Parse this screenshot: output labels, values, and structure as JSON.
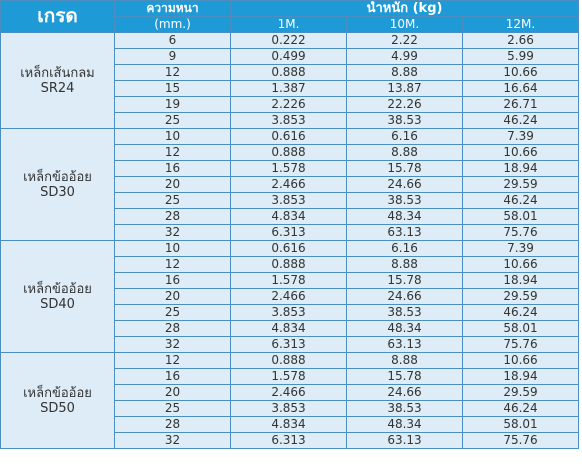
{
  "headers": {
    "grade": "เกรด",
    "thickness": "ความหนา",
    "weight": "น้ำหนัก (kg)",
    "unit": "(mm.)",
    "lengths": [
      "1M.",
      "10M.",
      "12M."
    ]
  },
  "groups": [
    {
      "name_line1": "เหล็กเส้นกลม",
      "name_line2": "SR24",
      "rows": [
        [
          "6",
          "0.222",
          "2.22",
          "2.66"
        ],
        [
          "9",
          "0.499",
          "4.99",
          "5.99"
        ],
        [
          "12",
          "0.888",
          "8.88",
          "10.66"
        ],
        [
          "15",
          "1.387",
          "13.87",
          "16.64"
        ],
        [
          "19",
          "2.226",
          "22.26",
          "26.71"
        ],
        [
          "25",
          "3.853",
          "38.53",
          "46.24"
        ]
      ]
    },
    {
      "name_line1": "เหล็กข้ออ้อย",
      "name_line2": "SD30",
      "rows": [
        [
          "10",
          "0.616",
          "6.16",
          "7.39"
        ],
        [
          "12",
          "0.888",
          "8.88",
          "10.66"
        ],
        [
          "16",
          "1.578",
          "15.78",
          "18.94"
        ],
        [
          "20",
          "2.466",
          "24.66",
          "29.59"
        ],
        [
          "25",
          "3.853",
          "38.53",
          "46.24"
        ],
        [
          "28",
          "4.834",
          "48.34",
          "58.01"
        ],
        [
          "32",
          "6.313",
          "63.13",
          "75.76"
        ]
      ]
    },
    {
      "name_line1": "เหล็กข้ออ้อย",
      "name_line2": "SD40",
      "rows": [
        [
          "10",
          "0.616",
          "6.16",
          "7.39"
        ],
        [
          "12",
          "0.888",
          "8.88",
          "10.66"
        ],
        [
          "16",
          "1.578",
          "15.78",
          "18.94"
        ],
        [
          "20",
          "2.466",
          "24.66",
          "29.59"
        ],
        [
          "25",
          "3.853",
          "38.53",
          "46.24"
        ],
        [
          "28",
          "4.834",
          "48.34",
          "58.01"
        ],
        [
          "32",
          "6.313",
          "63.13",
          "75.76"
        ]
      ]
    },
    {
      "name_line1": "เหล็กข้ออ้อย",
      "name_line2": "SD50",
      "rows": [
        [
          "12",
          "0.888",
          "8.88",
          "10.66"
        ],
        [
          "16",
          "1.578",
          "15.78",
          "18.94"
        ],
        [
          "20",
          "2.466",
          "24.66",
          "29.59"
        ],
        [
          "25",
          "3.853",
          "38.53",
          "46.24"
        ],
        [
          "28",
          "4.834",
          "48.34",
          "58.01"
        ],
        [
          "32",
          "6.313",
          "63.13",
          "75.76"
        ]
      ]
    }
  ],
  "colors": {
    "header_bg": "#1e9ad6",
    "cell_bg": "#ddecf6",
    "border": "#4a8fbf"
  }
}
